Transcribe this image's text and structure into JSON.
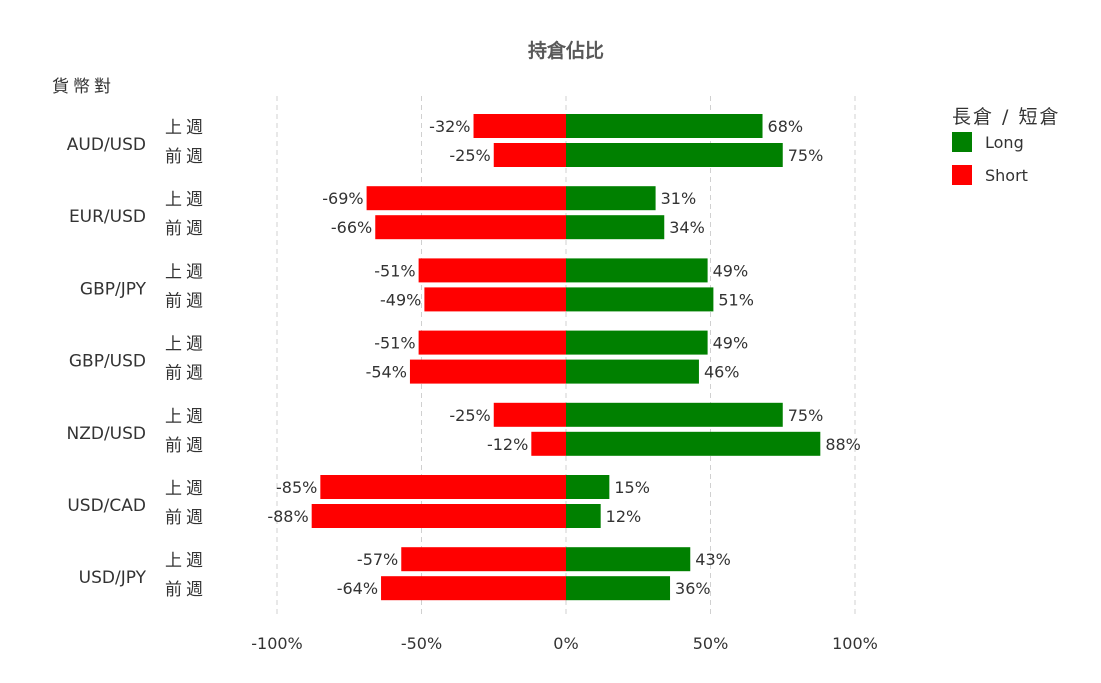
{
  "chart_data": {
    "type": "bar",
    "orientation": "horizontal",
    "stacking": "diverging",
    "title": "持倉佔比",
    "ylabel": "貨幣對",
    "categories": [
      "AUD/USD",
      "EUR/USD",
      "GBP/JPY",
      "GBP/USD",
      "NZD/USD",
      "USD/CAD",
      "USD/JPY"
    ],
    "subcategories": [
      "上週",
      "前週"
    ],
    "series": [
      {
        "name": "Long",
        "color": "#008000",
        "values": [
          [
            68,
            75
          ],
          [
            31,
            34
          ],
          [
            49,
            51
          ],
          [
            49,
            46
          ],
          [
            75,
            88
          ],
          [
            15,
            12
          ],
          [
            43,
            36
          ]
        ]
      },
      {
        "name": "Short",
        "color": "#ff0000",
        "values": [
          [
            -32,
            -25
          ],
          [
            -69,
            -66
          ],
          [
            -51,
            -49
          ],
          [
            -51,
            -54
          ],
          [
            -25,
            -12
          ],
          [
            -85,
            -88
          ],
          [
            -57,
            -64
          ]
        ]
      }
    ],
    "xlim": [
      -100,
      100
    ],
    "xticks": [
      -100,
      -50,
      0,
      50,
      100
    ],
    "xtick_labels": [
      "-100%",
      "-50%",
      "0%",
      "50%",
      "100%"
    ],
    "value_suffix": "%",
    "grid": "vertical-dashed",
    "legend": {
      "title": "長倉 / 短倉",
      "placement": "top-right",
      "entries": [
        "Long",
        "Short"
      ]
    }
  }
}
